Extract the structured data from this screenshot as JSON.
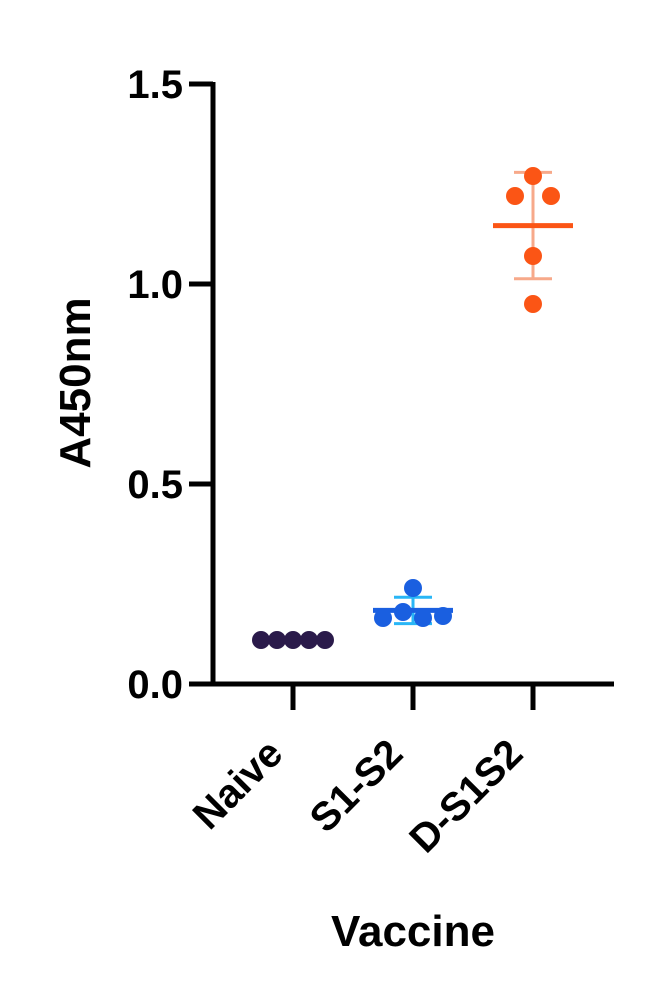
{
  "chart_data": {
    "type": "scatter",
    "xlabel": "Vaccine",
    "ylabel": "A450nm",
    "ylim": [
      0,
      1.5
    ],
    "yticks": [
      "0.0",
      "0.5",
      "1.0",
      "1.5"
    ],
    "categories": [
      "Naive",
      "S1-S2",
      "D-S1S2"
    ],
    "grid": false,
    "groups": [
      {
        "category": "Naive",
        "color": "#2a1a4a",
        "errorColor": "#2a1a4a",
        "points": [
          0.11,
          0.11,
          0.11,
          0.11,
          0.11
        ],
        "mean": 0.11,
        "sd": 0.0
      },
      {
        "category": "S1-S2",
        "color": "#1a5fe0",
        "errorColor": "#29b6f6",
        "points": [
          0.165,
          0.18,
          0.24,
          0.165,
          0.17
        ],
        "mean": 0.184,
        "sd": 0.033
      },
      {
        "category": "D-S1S2",
        "color": "#fb5515",
        "errorColor": "#f7a98a",
        "points": [
          1.27,
          1.22,
          1.22,
          1.07,
          0.95
        ],
        "mean": 1.146,
        "sd": 0.133
      }
    ]
  }
}
